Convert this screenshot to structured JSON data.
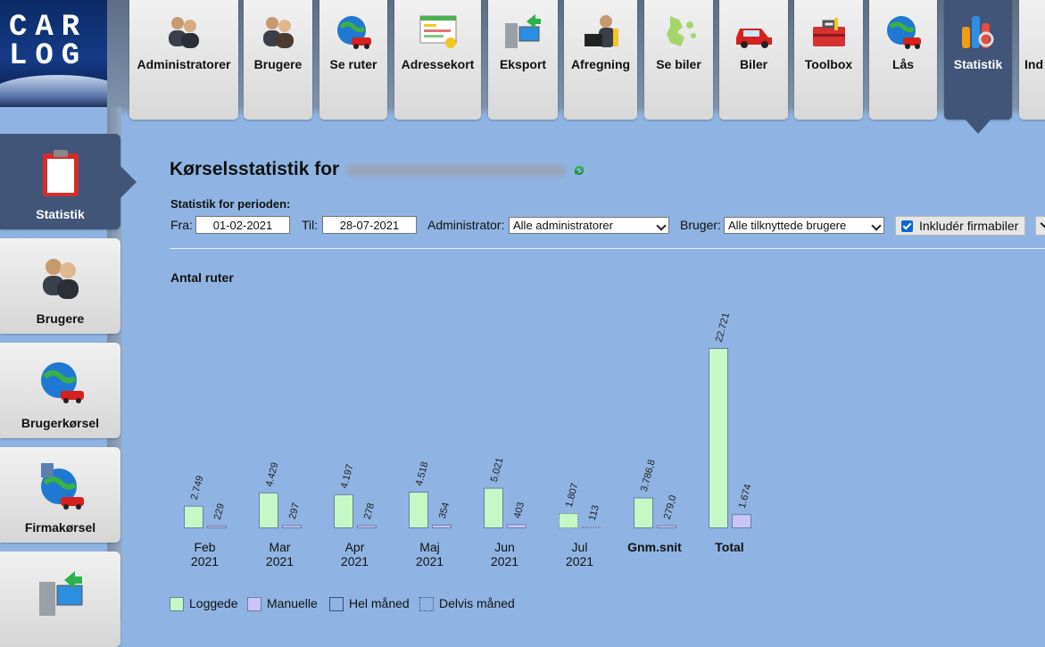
{
  "logo": {
    "line1": "CAR",
    "line2": "LOG"
  },
  "nav": {
    "tabs": [
      {
        "label": "Administratorer",
        "icon": "admin-users-icon"
      },
      {
        "label": "Brugere",
        "icon": "users-icon"
      },
      {
        "label": "Se ruter",
        "icon": "globe-car-icon"
      },
      {
        "label": "Adressekort",
        "icon": "address-card-icon"
      },
      {
        "label": "Eksport",
        "icon": "export-computer-icon"
      },
      {
        "label": "Afregning",
        "icon": "settlement-icon"
      },
      {
        "label": "Se biler",
        "icon": "map-icon"
      },
      {
        "label": "Biler",
        "icon": "car-icon"
      },
      {
        "label": "Toolbox",
        "icon": "toolbox-icon"
      },
      {
        "label": "Lås",
        "icon": "lock-globe-icon"
      },
      {
        "label": "Statistik",
        "icon": "statistics-icon",
        "active": true
      },
      {
        "label": "Ind",
        "icon": "settings-icon"
      }
    ]
  },
  "sidebar": {
    "items": [
      {
        "label": "Statistik",
        "icon": "clipboard-icon",
        "active": true
      },
      {
        "label": "Brugere",
        "icon": "users-icon"
      },
      {
        "label": "Brugerkørsel",
        "icon": "globe-car-icon"
      },
      {
        "label": "Firmakørsel",
        "icon": "company-globe-icon"
      },
      {
        "label": "",
        "icon": "export-computer-icon"
      }
    ]
  },
  "page": {
    "title": "Kørselsstatistik for",
    "period_label": "Statistik for perioden:",
    "from_label": "Fra:",
    "from_value": "01-02-2021",
    "to_label": "Til:",
    "to_value": "28-07-2021",
    "admin_label": "Administrator:",
    "admin_value": "Alle administratorer",
    "user_label": "Bruger:",
    "user_value": "Alle tilknyttede brugere",
    "include_company_cars": "Inkludér firmabiler"
  },
  "colors": {
    "logged": "#c6f7c6",
    "manual": "#c9c6f7",
    "bar_border": "#6a7fa6",
    "background": "#8fb4e3",
    "active_tab": "#405577"
  },
  "chart_data": {
    "type": "bar",
    "title": "Antal ruter",
    "categories": [
      {
        "line1": "Feb",
        "line2": "2021",
        "partial": false
      },
      {
        "line1": "Mar",
        "line2": "2021",
        "partial": false
      },
      {
        "line1": "Apr",
        "line2": "2021",
        "partial": false
      },
      {
        "line1": "Maj",
        "line2": "2021",
        "partial": false
      },
      {
        "line1": "Jun",
        "line2": "2021",
        "partial": false
      },
      {
        "line1": "Jul",
        "line2": "2021",
        "partial": true
      },
      {
        "line1": "Gnm.snit",
        "line2": "",
        "bold": true,
        "partial": false
      },
      {
        "line1": "Total",
        "line2": "",
        "bold": true,
        "partial": false
      }
    ],
    "series": [
      {
        "name": "Loggede",
        "values": [
          2749,
          4429,
          4197,
          4518,
          5021,
          1807,
          3786.8,
          22721
        ],
        "labels": [
          "2.749",
          "4.429",
          "4.197",
          "4.518",
          "5.021",
          "1.807",
          "3.786,8",
          "22.721"
        ]
      },
      {
        "name": "Manuelle",
        "values": [
          229,
          297,
          278,
          354,
          403,
          113,
          279.0,
          1674
        ],
        "labels": [
          "229",
          "297",
          "278",
          "354",
          "403",
          "113",
          "279,0",
          "1.674"
        ]
      }
    ],
    "legend": [
      "Loggede",
      "Manuelle",
      "Hel måned",
      "Delvis måned"
    ]
  }
}
